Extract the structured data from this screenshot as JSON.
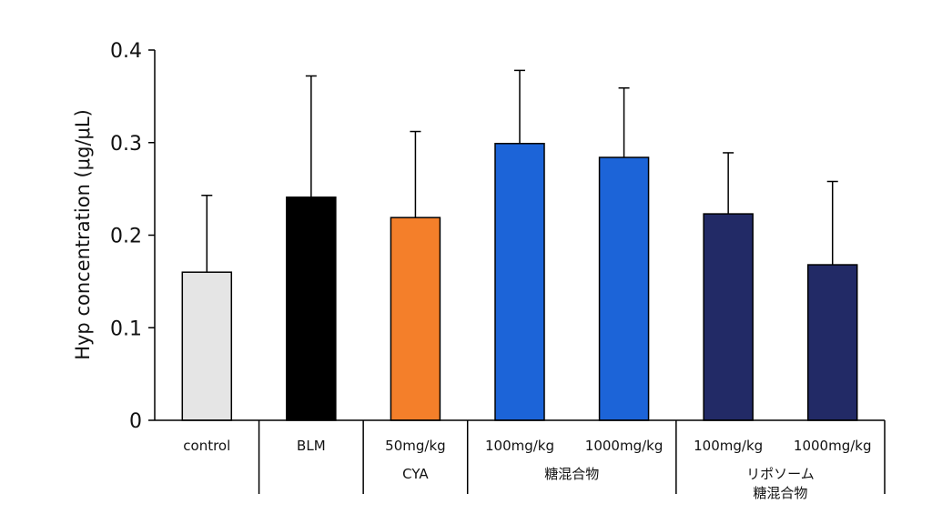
{
  "chart_data": {
    "type": "bar",
    "ylabel": "Hyp concentration (μg/μL)",
    "ylim": [
      0,
      0.4
    ],
    "yticks": [
      "0",
      "0.1",
      "0.2",
      "0.3",
      "0.4"
    ],
    "ytick_values": [
      0,
      0.1,
      0.2,
      0.3,
      0.4
    ],
    "grid": false,
    "categories": [
      "control",
      "BLM",
      "50mg/kg",
      "100mg/kg",
      "1000mg/kg",
      "100mg/kg",
      "1000mg/kg"
    ],
    "values": [
      0.16,
      0.241,
      0.219,
      0.299,
      0.284,
      0.223,
      0.168
    ],
    "error_upper": [
      0.243,
      0.372,
      0.312,
      0.378,
      0.359,
      0.289,
      0.258
    ],
    "colors": [
      "#e5e5e5",
      "#000000",
      "#f47f2a",
      "#1c64d8",
      "#1c64d8",
      "#222a66",
      "#222a66"
    ],
    "groups": [
      {
        "label_lines": [],
        "span": [
          0,
          0
        ]
      },
      {
        "label_lines": [],
        "span": [
          1,
          1
        ]
      },
      {
        "label_lines": [
          "CYA"
        ],
        "span": [
          2,
          2
        ]
      },
      {
        "label_lines": [
          "糖混合物"
        ],
        "span": [
          3,
          4
        ]
      },
      {
        "label_lines": [
          "リポソーム",
          "糖混合物"
        ],
        "span": [
          5,
          6
        ]
      }
    ]
  }
}
